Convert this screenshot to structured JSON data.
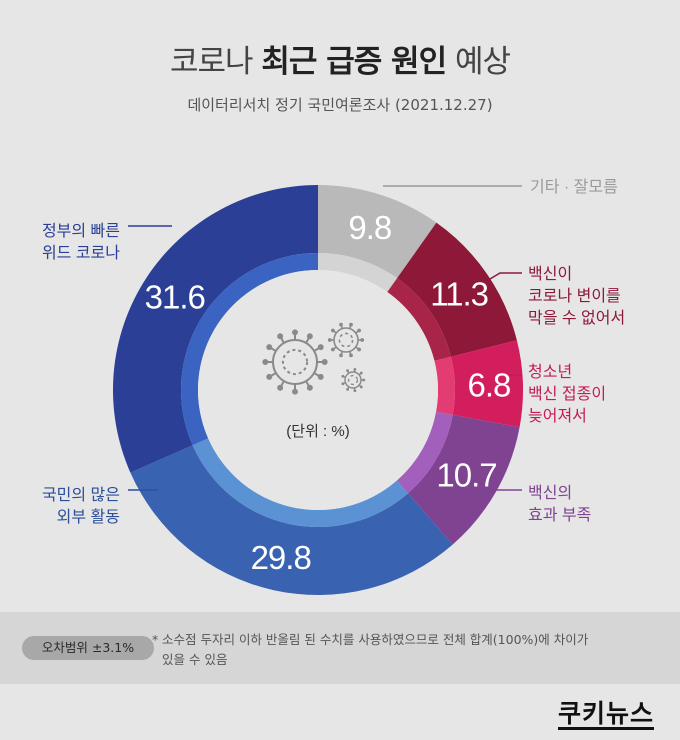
{
  "header": {
    "title_pre": "코로나 ",
    "title_bold": "최근 급증 원인",
    "title_post": " 예상",
    "subtitle": "데이터리서치 정기 국민여론조사 (2021.12.27)"
  },
  "chart_data": {
    "type": "pie",
    "donut": true,
    "title": "코로나 최근 급증 원인 예상",
    "subtitle": "데이터리서치 정기 국민여론조사 (2021.12.27)",
    "unit_label": "(단위 : %)",
    "slices": [
      {
        "label_lines": [
          "기타 · 잘모름"
        ],
        "value": 9.8,
        "value_label": "9.8",
        "color": "#b9b9b9",
        "inner": "#d4d4d4",
        "label_color": "#9a9a9a",
        "value_color": "#ffffff"
      },
      {
        "label_lines": [
          "백신이",
          "코로나 변이를",
          "막을 수 없어서"
        ],
        "value": 11.3,
        "value_label": "11.3",
        "color": "#8e1838",
        "inner": "#a82448",
        "label_color": "#8e1838",
        "value_color": "#ffffff"
      },
      {
        "label_lines": [
          "청소년",
          "백신 접종이",
          "늦어져서"
        ],
        "value": 6.8,
        "value_label": "6.8",
        "color": "#d21e5c",
        "inner": "#e23c72",
        "label_color": "#c41c55",
        "value_color": "#ffffff"
      },
      {
        "label_lines": [
          "백신의",
          "효과 부족"
        ],
        "value": 10.7,
        "value_label": "10.7",
        "color": "#7f4392",
        "inner": "#a25fbc",
        "label_color": "#7f4392",
        "value_color": "#ffffff"
      },
      {
        "label_lines": [
          "국민의 많은",
          "외부 활동"
        ],
        "value": 29.8,
        "value_label": "29.8",
        "color": "#3962b0",
        "inner": "#5b92d4",
        "label_color": "#2c4f9a",
        "value_color": "#ffffff"
      },
      {
        "label_lines": [
          "정부의 빠른",
          "위드 코로나"
        ],
        "value": 31.6,
        "value_label": "31.6",
        "color": "#2a3f95",
        "inner": "#3a63c2",
        "label_color": "#2a3f95",
        "value_color": "#ffffff"
      }
    ]
  },
  "footer": {
    "moe_label": "오차범위 ±3.1%",
    "note_mark": "*",
    "note_line1": "소수점 두자리 이하 반올림 된 수치를 사용하였으므로 전체 합계(100%)에 차이가",
    "note_line2": "있을 수 있음"
  },
  "brand": {
    "logo": "쿠키뉴스"
  }
}
